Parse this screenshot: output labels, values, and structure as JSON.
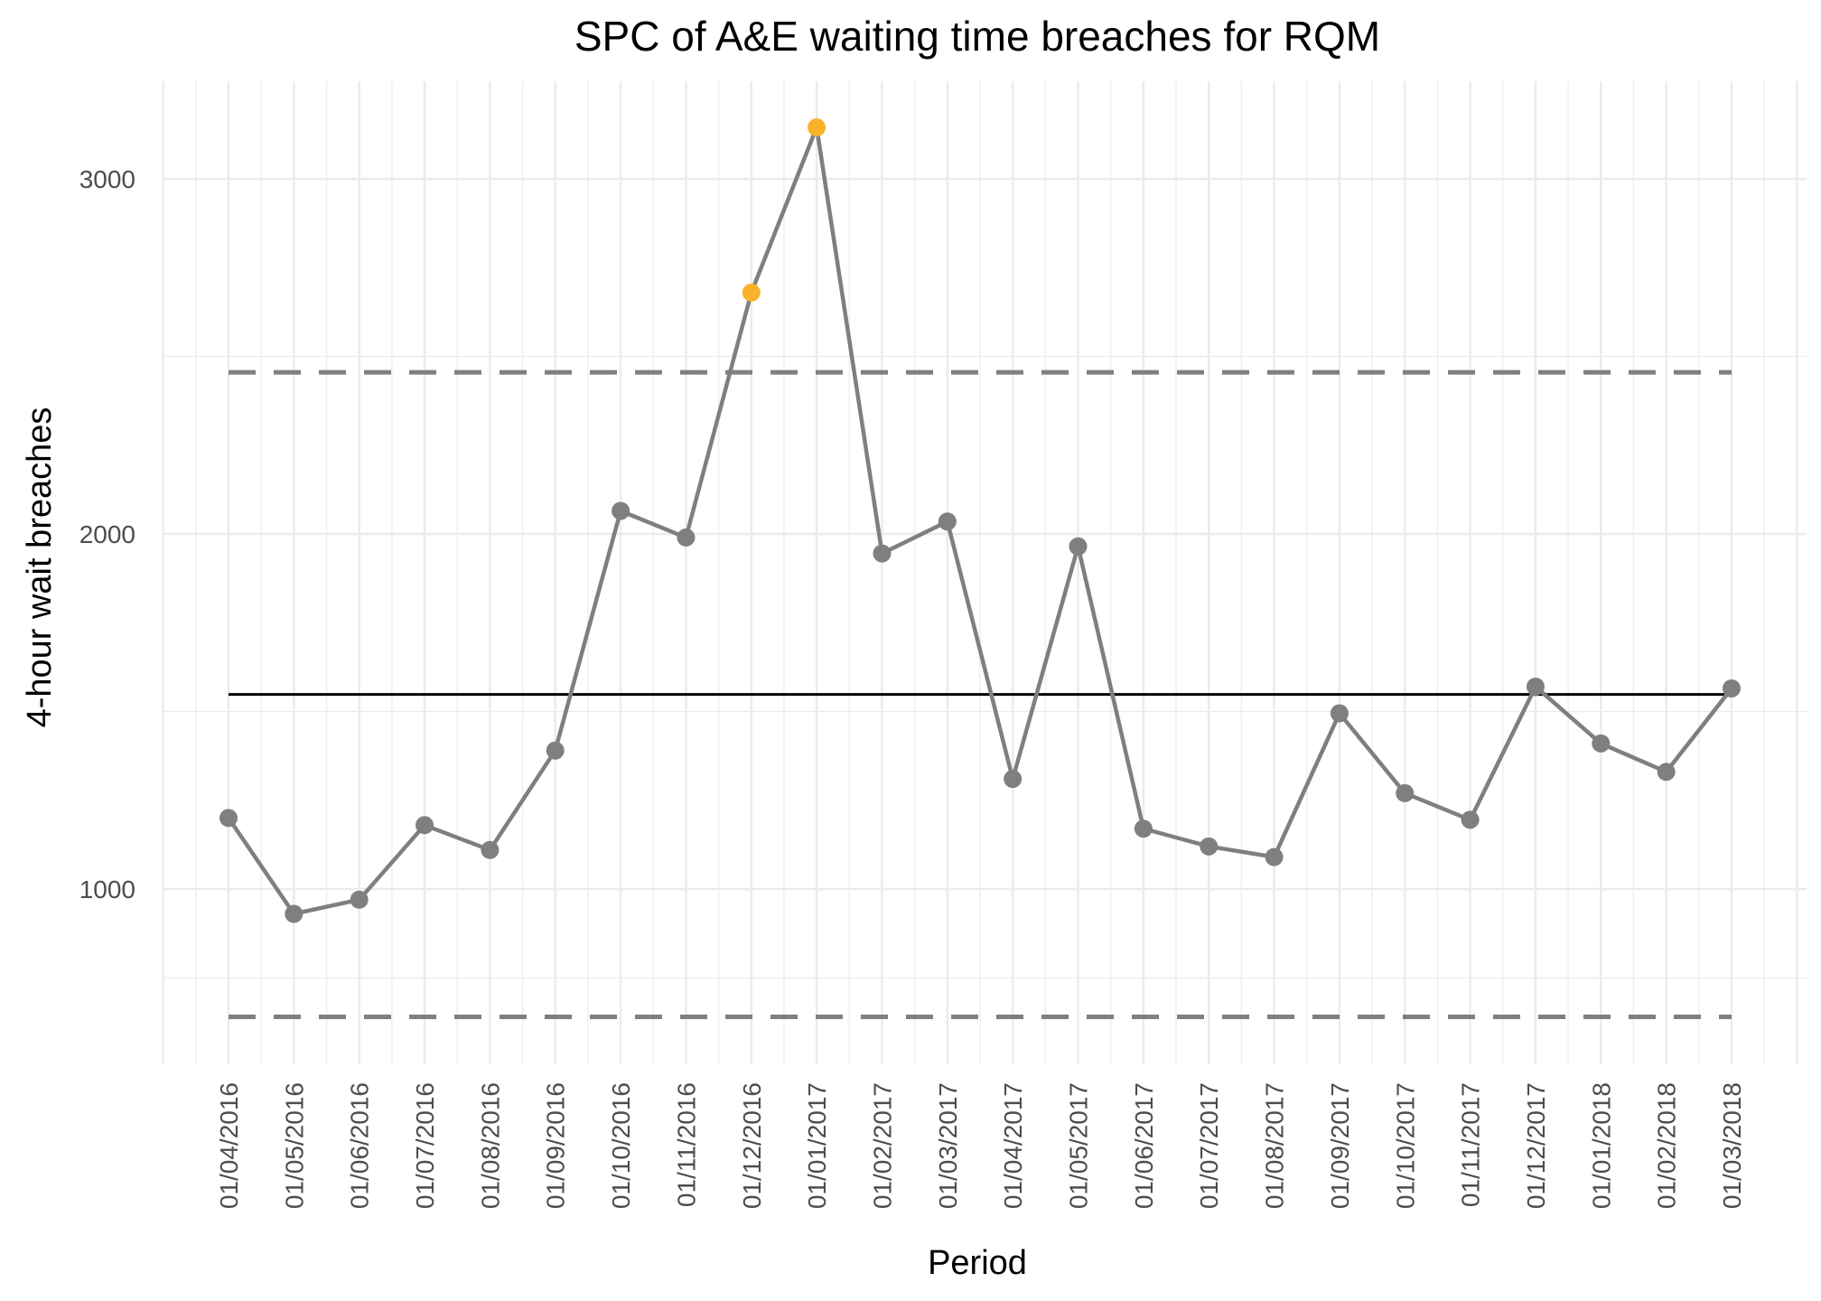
{
  "chart_data": {
    "type": "line",
    "title": "SPC of A&E waiting time breaches for RQM",
    "xlabel": "Period",
    "ylabel": "4-hour wait breaches",
    "categories": [
      "01/04/2016",
      "01/05/2016",
      "01/06/2016",
      "01/07/2016",
      "01/08/2016",
      "01/09/2016",
      "01/10/2016",
      "01/11/2016",
      "01/12/2016",
      "01/01/2017",
      "01/02/2017",
      "01/03/2017",
      "01/04/2017",
      "01/05/2017",
      "01/06/2017",
      "01/07/2017",
      "01/08/2017",
      "01/09/2017",
      "01/10/2017",
      "01/11/2017",
      "01/12/2017",
      "01/01/2018",
      "01/02/2018",
      "01/03/2018"
    ],
    "series": [
      {
        "values": [
          1200,
          930,
          970,
          1180,
          1110,
          1390,
          2065,
          1990,
          2680,
          3145,
          1945,
          2035,
          1310,
          1965,
          1170,
          1120,
          1090,
          1495,
          1270,
          1195,
          1570,
          1410,
          1330,
          1565
        ],
        "color": "#7f7f7f"
      }
    ],
    "highlight_indices": [
      8,
      9
    ],
    "highlight_color": "#f9b22a",
    "center_line": 1548,
    "upper_control_limit": 2455,
    "lower_control_limit": 640,
    "ylim": [
      500,
      3250
    ],
    "yticks": [
      1000,
      2000,
      3000
    ],
    "ytick_labels": [
      "1000",
      "2000",
      "3000"
    ],
    "grid": true,
    "legend": "none",
    "colors": {
      "line": "#7f7f7f",
      "point": "#7f7f7f",
      "highlight": "#f9b22a",
      "center_line": "#000000",
      "limits": "#7f7f7f",
      "grid": "#ebebeb"
    }
  }
}
